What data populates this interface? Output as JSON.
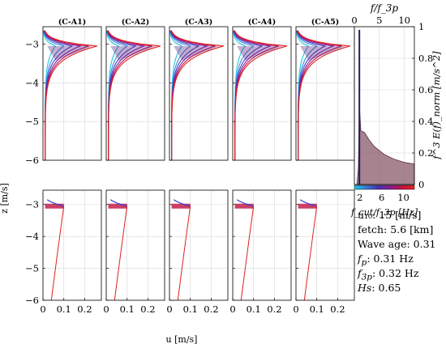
{
  "chart_data": [
    {
      "type": "line",
      "panels_top": [
        "(C-A1)",
        "(C-A2)",
        "(C-A3)",
        "(C-A4)",
        "(C-A5)"
      ],
      "ylabel": "z [m/s]",
      "xlabel": "u [m/s]",
      "top_ylim": [
        -6,
        -2.55
      ],
      "bottom_ylim": [
        -6,
        -2.55
      ],
      "xlim": [
        0,
        0.28
      ],
      "yticks": [
        -6,
        -5,
        -4,
        -3
      ],
      "xticks": [
        0,
        0.1,
        0.2
      ],
      "xtick_labels": [
        "0",
        "0.1",
        "0.2"
      ],
      "ytick_labels": [
        "−6",
        "−5",
        "−4",
        "−3"
      ],
      "grid": true,
      "top_profiles": {
        "surface_z": -3.05,
        "base_speed": 0.01,
        "peak_speeds": [
          0.06,
          0.1,
          0.14,
          0.18,
          0.22,
          0.26
        ],
        "colors": [
          "#20c8e0",
          "#3a8ce0",
          "#4040c0",
          "#8020a0",
          "#c01050",
          "#e02020"
        ]
      },
      "bottom_profiles": {
        "surface_z": -3.05,
        "jet_speed": 0.1,
        "line_points": [
          {
            "z": -3.05,
            "u": 0.1
          },
          {
            "z": -4.0,
            "u": 0.08
          },
          {
            "z": -5.0,
            "u": 0.06
          },
          {
            "z": -6.0,
            "u": 0.04
          }
        ],
        "line_color": "#e02020"
      }
    },
    {
      "type": "area",
      "top_axis_label": "f/f_3p",
      "top_axis_ticks": [
        "0",
        "5",
        "10"
      ],
      "right_axis_label": "f^3 E(f)_norm [m/s^2]",
      "right_axis_ticks": [
        "0",
        "0.2",
        "0.4",
        "0.6",
        "0.8",
        "1"
      ],
      "ylim": [
        0,
        1
      ],
      "x_peak": 1.0,
      "spectrum_points": [
        {
          "x": 0.5,
          "y": 0.0
        },
        {
          "x": 0.8,
          "y": 0.1
        },
        {
          "x": 1.0,
          "y": 0.5
        },
        {
          "x": 1.3,
          "y": 0.34
        },
        {
          "x": 2,
          "y": 0.33
        },
        {
          "x": 3,
          "y": 0.28
        },
        {
          "x": 4,
          "y": 0.24
        },
        {
          "x": 6,
          "y": 0.19
        },
        {
          "x": 8,
          "y": 0.16
        },
        {
          "x": 10,
          "y": 0.14
        },
        {
          "x": 12,
          "y": 0.13
        }
      ],
      "colorbar": {
        "ticks": [
          "2",
          "6",
          "10"
        ],
        "label": "f_cut/f_3p  [Hz]",
        "colors": [
          "#1ec8e0",
          "#3a7ad8",
          "#4a2fb0",
          "#8a1c90",
          "#c81040",
          "#f02020"
        ]
      }
    }
  ],
  "info": {
    "u10": "u₁₀: 15 [m/s]",
    "fetch": "fetch: 5.6 [km]",
    "wave_age": "Wave age: 0.31",
    "fp_key": "f",
    "fp_sub": "p",
    "fp_val": ": 0.31 Hz",
    "f3p_key": "f",
    "f3p_sub": "3p",
    "f3p_val": ": 0.32 Hz",
    "hs_key": "Hs",
    "hs_val": ": 0.65"
  }
}
